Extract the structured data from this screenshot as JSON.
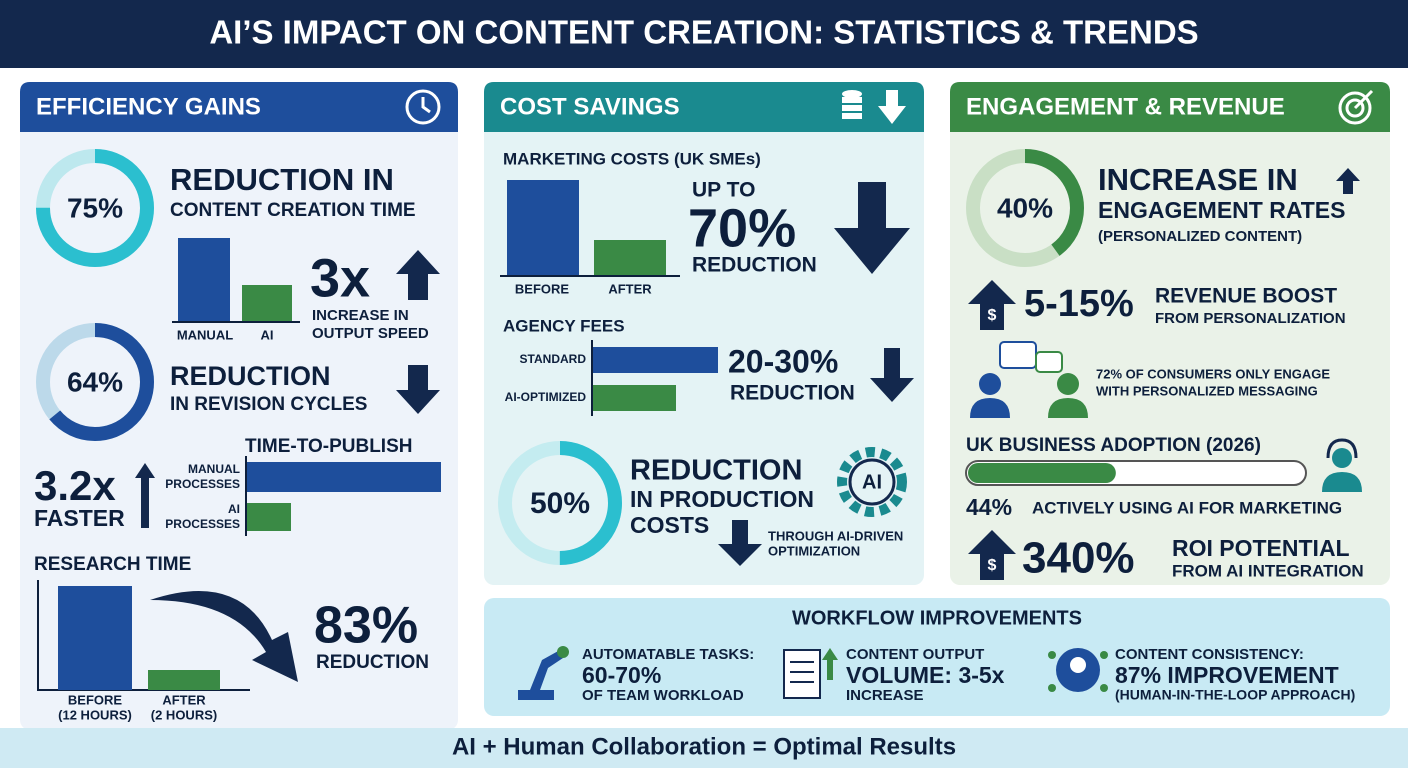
{
  "header": {
    "title": "AI’S IMPACT ON CONTENT CREATION: STATISTICS & TRENDS"
  },
  "efficiency": {
    "title": "EFFICIENCY GAINS",
    "content_time": {
      "ring": {
        "value": 75,
        "label": "75%"
      },
      "headline": "REDUCTION IN",
      "subline": "CONTENT CREATION TIME"
    },
    "output": {
      "bar_labels": [
        "MANUAL",
        "AI"
      ],
      "multiplier": "3x",
      "text": [
        "INCREASE IN",
        "OUTPUT SPEED"
      ]
    },
    "revision": {
      "ring": {
        "value": 64,
        "label": "64%"
      },
      "headline": "REDUCTION",
      "subline": "IN REVISION CYCLES"
    },
    "publish": {
      "title": "TIME-TO-PUBLISH",
      "multiplier": "3.2x",
      "faster": "FASTER",
      "bar_labels": [
        [
          "MANUAL",
          "PROCESSES"
        ],
        [
          "AI",
          "PROCESSES"
        ]
      ]
    },
    "research": {
      "title": "RESEARCH TIME",
      "bar_labels": [
        [
          "BEFORE",
          "(12 HOURS)"
        ],
        [
          "AFTER",
          "(2 HOURS)"
        ]
      ],
      "percent": "83%",
      "text": "REDUCTION"
    }
  },
  "cost": {
    "title": "COST SAVINGS",
    "marketing": {
      "title": "MARKETING COSTS (UK SMEs)",
      "bar_labels": [
        "BEFORE",
        "AFTER"
      ],
      "lead": "UP TO",
      "percent": "70%",
      "text": "REDUCTION"
    },
    "agency": {
      "title": "AGENCY FEES",
      "bar_labels": [
        "STANDARD",
        "AI-OPTIMIZED"
      ],
      "percent": "20-30%",
      "text": "REDUCTION"
    },
    "production": {
      "ring": {
        "value": 50,
        "label": "50%"
      },
      "lines": [
        "REDUCTION",
        "IN PRODUCTION",
        "COSTS"
      ],
      "icon": "AI",
      "note": [
        "THROUGH AI-DRIVEN",
        "OPTIMIZATION"
      ]
    }
  },
  "engagement": {
    "title": "ENGAGEMENT & REVENUE",
    "engagement_rates": {
      "ring": {
        "value": 40,
        "label": "40%"
      },
      "headline": "INCREASE IN",
      "subline": "ENGAGEMENT RATES",
      "note": "(PERSONALIZED CONTENT)"
    },
    "revenue": {
      "percent": "5-15%",
      "headline": "REVENUE BOOST",
      "subline": "FROM PERSONALIZATION"
    },
    "consumers": [
      "72% OF CONSUMERS ONLY ENGAGE",
      "WITH PERSONALIZED MESSAGING"
    ],
    "adoption": {
      "title": "UK BUSINESS ADOPTION (2026)",
      "share": {
        "value": 44,
        "label": "44%"
      },
      "text": "ACTIVELY USING AI FOR MARKETING"
    },
    "roi": {
      "percent": "340%",
      "headline": "ROI POTENTIAL",
      "subline": "FROM AI INTEGRATION"
    }
  },
  "workflow": {
    "title": "WORKFLOW IMPROVEMENTS",
    "items": [
      [
        "AUTOMATABLE TASKS:",
        "60-70%",
        "OF TEAM WORKLOAD"
      ],
      [
        "CONTENT OUTPUT",
        "VOLUME: 3-5x",
        "INCREASE"
      ],
      [
        "CONTENT CONSISTENCY:",
        "87% IMPROVEMENT",
        "(HUMAN-IN-THE-LOOP APPROACH)"
      ]
    ]
  },
  "footer": "AI + Human Collaboration = Optimal Results"
}
